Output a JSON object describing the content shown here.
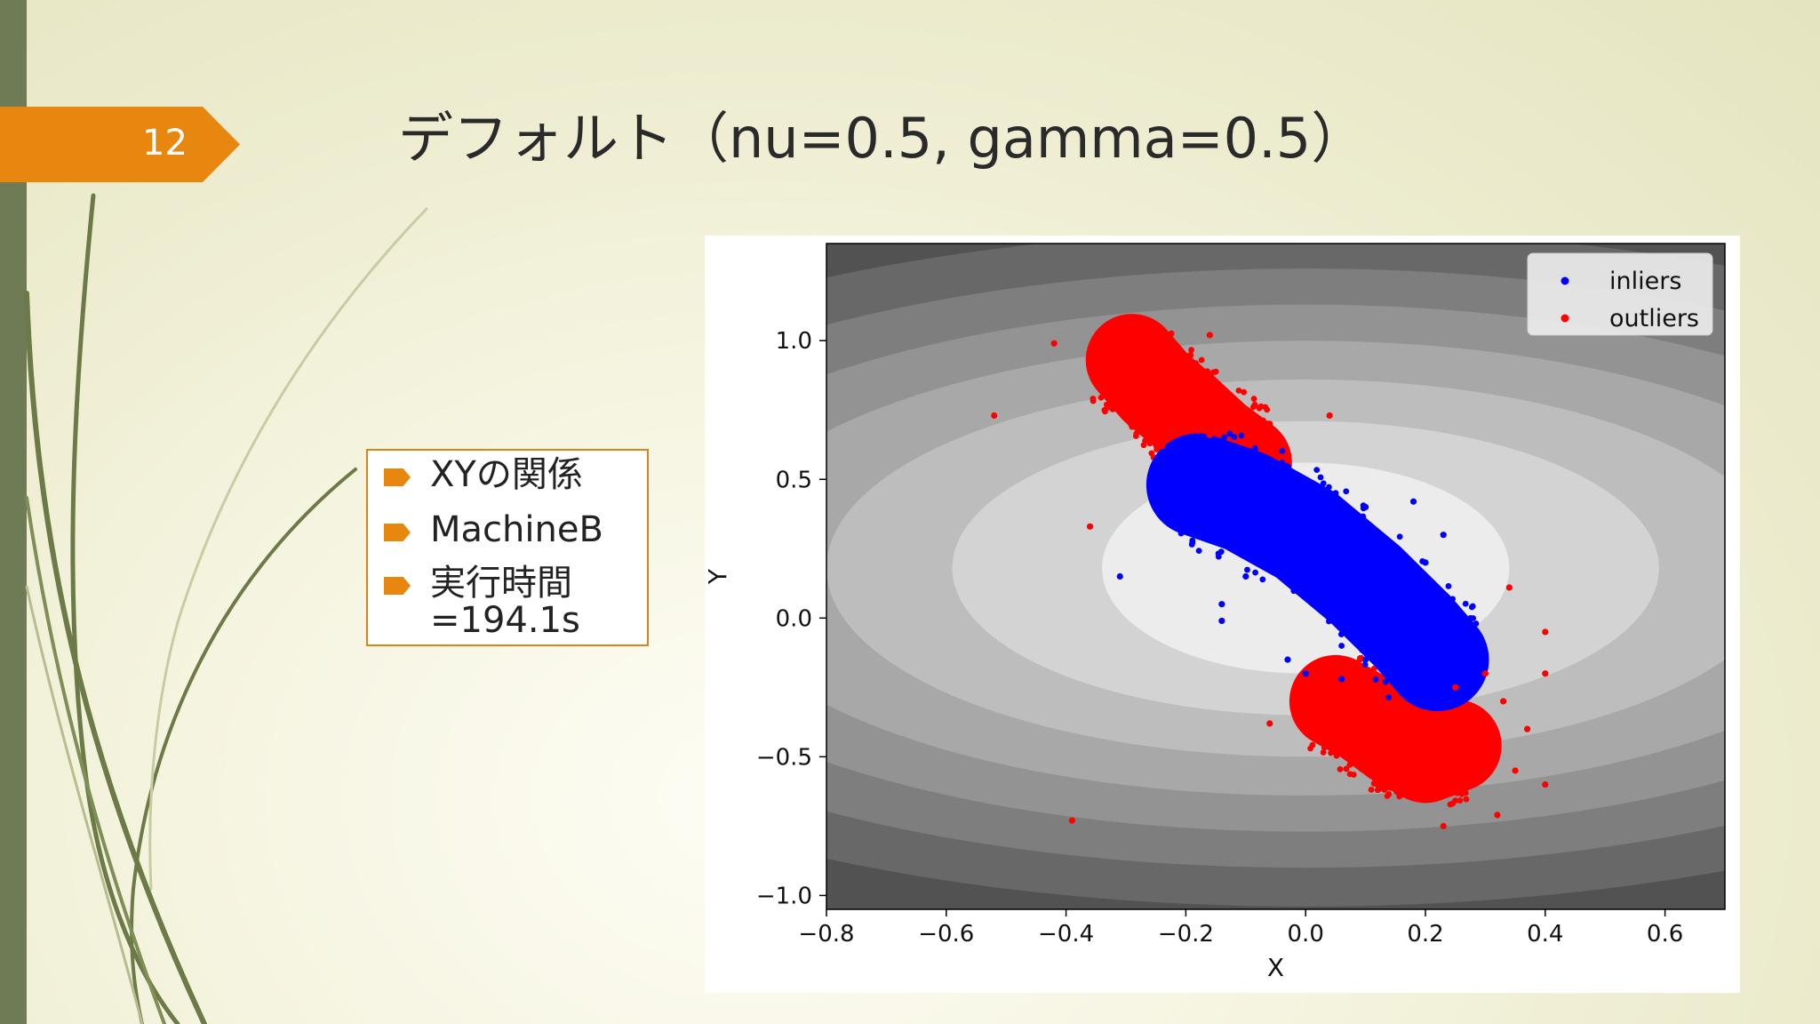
{
  "slide": {
    "number": "12",
    "title": "デフォルト（nu=0.5, gamma=0.5）",
    "bullets": [
      "XYの関係",
      "MachineB",
      "実行時間\n=194.1s"
    ],
    "accent_color": "#e8870f",
    "sidebar_color": "#6e7b55",
    "bullet_icon": "arrow-tag-icon"
  },
  "chart_data": {
    "type": "scatter",
    "title": "",
    "xlabel": "X",
    "ylabel": "Y",
    "xlim": [
      -0.8,
      0.7
    ],
    "ylim": [
      -1.05,
      1.35
    ],
    "xticks": [
      -0.8,
      -0.6,
      -0.4,
      -0.2,
      0.0,
      0.2,
      0.4,
      0.6
    ],
    "yticks": [
      -1.0,
      -0.5,
      0.0,
      0.5,
      1.0
    ],
    "xtick_labels": [
      "−0.8",
      "−0.6",
      "−0.4",
      "−0.2",
      "0.0",
      "0.2",
      "0.4",
      "0.6"
    ],
    "ytick_labels": [
      "−1.0",
      "−0.5",
      "0.0",
      "0.5",
      "1.0"
    ],
    "grid": false,
    "legend": {
      "position": "top-right",
      "entries": [
        "inliers",
        "outliers"
      ]
    },
    "background": {
      "type": "filled-contour",
      "center": [
        0.0,
        0.18
      ],
      "levels": [
        {
          "rx": 0.34,
          "ry": 0.38,
          "color": "#ececec"
        },
        {
          "rx": 0.59,
          "ry": 0.53,
          "color": "#d3d3d3"
        },
        {
          "rx": 0.8,
          "ry": 0.68,
          "color": "#bdbdbd"
        },
        {
          "rx": 1.0,
          "ry": 0.82,
          "color": "#a8a8a8"
        },
        {
          "rx": 1.18,
          "ry": 0.95,
          "color": "#939393"
        },
        {
          "rx": 1.37,
          "ry": 1.08,
          "color": "#7e7e7e"
        },
        {
          "rx": 1.56,
          "ry": 1.22,
          "color": "#686868"
        },
        {
          "rx": 1.8,
          "ry": 1.4,
          "color": "#525252"
        },
        {
          "rx": 2.2,
          "ry": 1.7,
          "color": "#3c3c3c"
        }
      ],
      "outer_color": "#222222"
    },
    "series": [
      {
        "name": "inliers",
        "color": "#0000ff",
        "band": [
          [
            -0.18,
            0.48
          ],
          [
            -0.1,
            0.42
          ],
          [
            0.0,
            0.3
          ],
          [
            0.1,
            0.12
          ],
          [
            0.18,
            -0.05
          ],
          [
            0.22,
            -0.15
          ]
        ],
        "points": [
          [
            -0.2,
            0.45
          ],
          [
            -0.12,
            0.5
          ],
          [
            -0.04,
            0.48
          ],
          [
            0.05,
            0.45
          ],
          [
            0.1,
            0.4
          ],
          [
            0.18,
            0.42
          ],
          [
            0.23,
            0.3
          ],
          [
            -0.15,
            0.28
          ],
          [
            -0.1,
            0.15
          ],
          [
            -0.14,
            0.05
          ],
          [
            -0.14,
            -0.01
          ],
          [
            -0.03,
            -0.15
          ],
          [
            0.0,
            -0.2
          ],
          [
            0.06,
            -0.22
          ],
          [
            0.1,
            -0.15
          ],
          [
            0.2,
            0.05
          ],
          [
            0.23,
            0.0
          ],
          [
            0.24,
            -0.1
          ],
          [
            0.27,
            -0.05
          ],
          [
            -0.31,
            0.15
          ],
          [
            0.14,
            0.25
          ],
          [
            0.2,
            0.2
          ]
        ]
      },
      {
        "name": "outliers",
        "color": "#ff0000",
        "bands": [
          [
            [
              -0.29,
              0.93
            ],
            [
              -0.25,
              0.83
            ],
            [
              -0.2,
              0.74
            ],
            [
              -0.15,
              0.64
            ],
            [
              -0.1,
              0.56
            ]
          ],
          [
            [
              0.05,
              -0.3
            ],
            [
              0.1,
              -0.36
            ],
            [
              0.15,
              -0.44
            ],
            [
              0.2,
              -0.5
            ],
            [
              0.25,
              -0.46
            ]
          ]
        ],
        "points": [
          [
            -0.42,
            0.99
          ],
          [
            -0.3,
            1.07
          ],
          [
            -0.29,
            1.02
          ],
          [
            -0.16,
            1.02
          ],
          [
            -0.52,
            0.73
          ],
          [
            -0.33,
            0.76
          ],
          [
            -0.27,
            0.7
          ],
          [
            -0.24,
            0.62
          ],
          [
            -0.16,
            0.66
          ],
          [
            -0.06,
            0.7
          ],
          [
            -0.04,
            0.63
          ],
          [
            0.04,
            0.73
          ],
          [
            -0.36,
            0.33
          ],
          [
            -0.39,
            -0.73
          ],
          [
            0.34,
            0.11
          ],
          [
            0.4,
            -0.05
          ],
          [
            0.4,
            -0.2
          ],
          [
            0.3,
            -0.2
          ],
          [
            0.33,
            -0.3
          ],
          [
            0.37,
            -0.4
          ],
          [
            0.35,
            -0.55
          ],
          [
            0.4,
            -0.6
          ],
          [
            0.23,
            -0.75
          ],
          [
            0.32,
            -0.71
          ],
          [
            0.27,
            -0.58
          ],
          [
            -0.06,
            -0.38
          ],
          [
            0.0,
            -0.3
          ],
          [
            0.02,
            -0.4
          ],
          [
            0.07,
            -0.27
          ],
          [
            0.12,
            -0.6
          ],
          [
            0.25,
            -0.25
          ],
          [
            0.3,
            -0.5
          ],
          [
            -0.02,
            -0.27
          ]
        ]
      }
    ]
  }
}
